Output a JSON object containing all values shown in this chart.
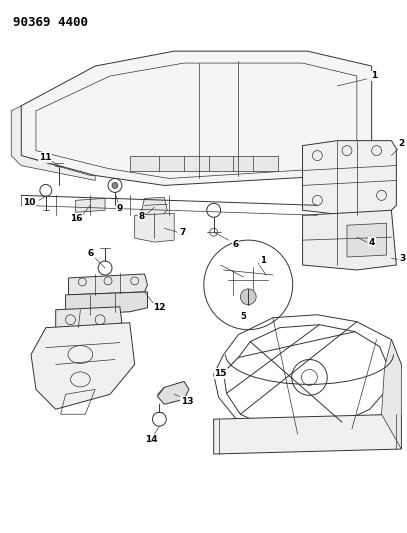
{
  "title": "90369 4400",
  "bg_color": "#ffffff",
  "line_color": "#333333",
  "label_color": "#000000",
  "label_fontsize": 6.5,
  "title_fontsize": 9,
  "fig_width": 4.07,
  "fig_height": 5.33,
  "dpi": 100
}
